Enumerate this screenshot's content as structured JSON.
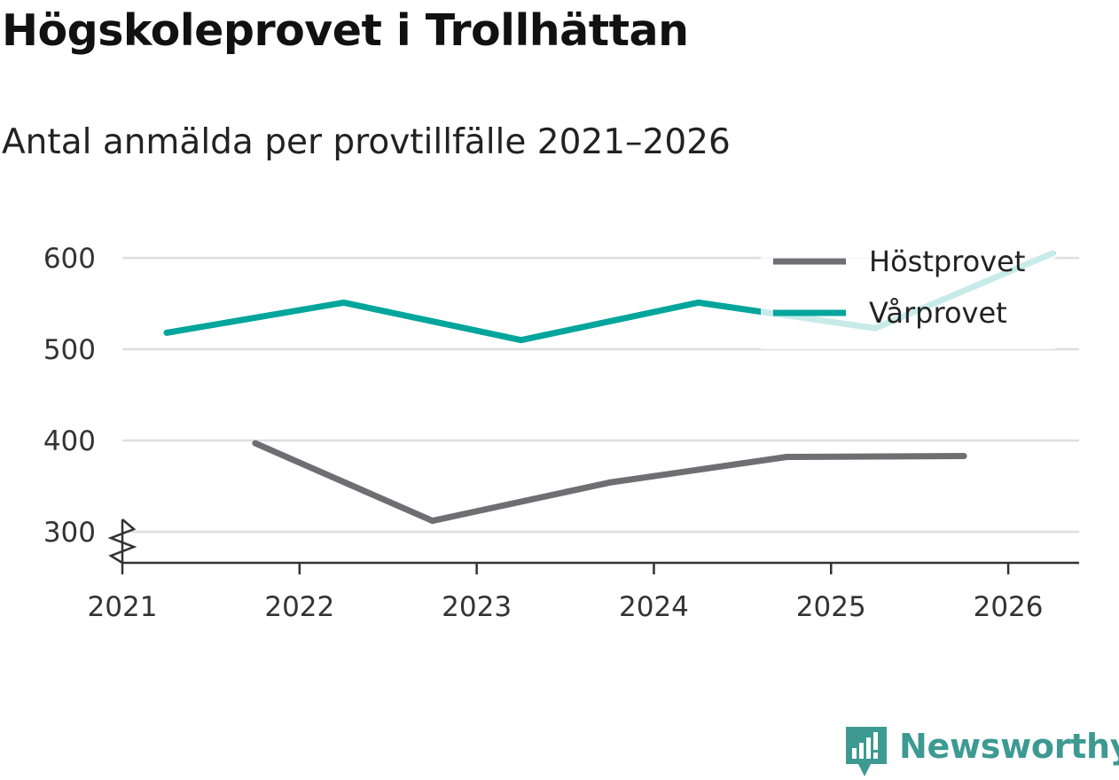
{
  "chart_data": {
    "type": "line",
    "title": "Högskoleprovet i Trollhättan",
    "subtitle": "Antal anmälda per provtillfälle 2021–2026",
    "xlabel": "",
    "ylabel": "",
    "x_ticks": [
      "2021",
      "2022",
      "2023",
      "2024",
      "2025",
      "2026"
    ],
    "y_ticks": [
      300,
      400,
      500,
      600
    ],
    "xlim": [
      2021,
      2026.4
    ],
    "ylim": [
      266,
      632
    ],
    "axis_break": true,
    "grid": true,
    "legend_position": "top-right",
    "series": [
      {
        "name": "Höstprovet",
        "color": "#6f6e73",
        "x": [
          2021.75,
          2022.75,
          2023.75,
          2024.75,
          2025.75
        ],
        "values": [
          397,
          312,
          354,
          382,
          383
        ]
      },
      {
        "name": "Vårprovet",
        "color": "#00a59b",
        "x": [
          2021.25,
          2022.25,
          2023.25,
          2024.25,
          2025.25,
          2026.25
        ],
        "values": [
          518,
          551,
          510,
          551,
          523,
          605
        ]
      }
    ]
  },
  "brand": {
    "name": "Newsworthy",
    "color": "#3d9a92"
  }
}
